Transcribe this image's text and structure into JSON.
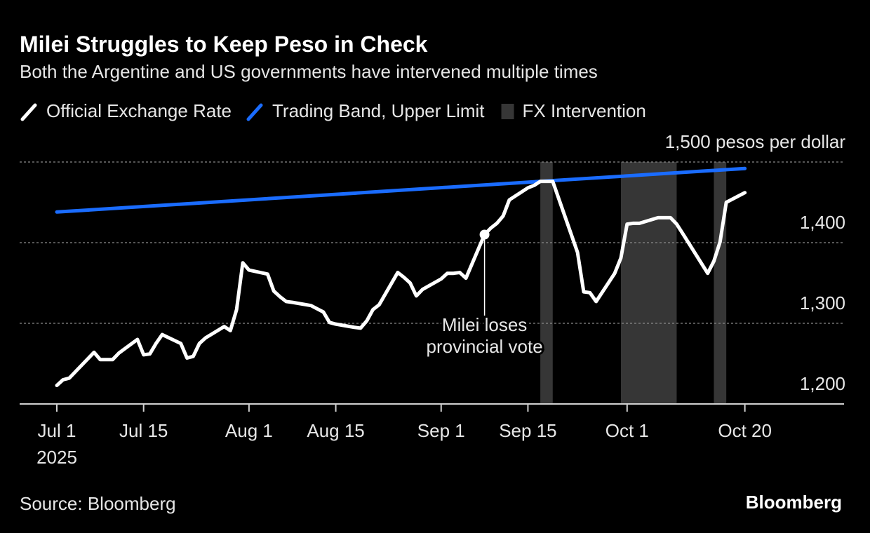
{
  "chart_data": {
    "type": "line",
    "title": "Milei Struggles to Keep Peso in Check",
    "subtitle": "Both the Argentine and US governments have intervened multiple times",
    "source": "Source: Bloomberg",
    "logo": "Bloomberg",
    "x": [
      "2025-07-01",
      "2025-07-02",
      "2025-07-03",
      "2025-07-07",
      "2025-07-08",
      "2025-07-09",
      "2025-07-10",
      "2025-07-11",
      "2025-07-14",
      "2025-07-15",
      "2025-07-16",
      "2025-07-17",
      "2025-07-18",
      "2025-07-21",
      "2025-07-22",
      "2025-07-23",
      "2025-07-24",
      "2025-07-25",
      "2025-07-28",
      "2025-07-29",
      "2025-07-30",
      "2025-07-31",
      "2025-08-01",
      "2025-08-04",
      "2025-08-05",
      "2025-08-06",
      "2025-08-07",
      "2025-08-08",
      "2025-08-11",
      "2025-08-12",
      "2025-08-13",
      "2025-08-14",
      "2025-08-15",
      "2025-08-18",
      "2025-08-19",
      "2025-08-20",
      "2025-08-21",
      "2025-08-22",
      "2025-08-25",
      "2025-08-26",
      "2025-08-27",
      "2025-08-28",
      "2025-08-29",
      "2025-09-01",
      "2025-09-02",
      "2025-09-03",
      "2025-09-04",
      "2025-09-05",
      "2025-09-08",
      "2025-09-09",
      "2025-09-10",
      "2025-09-11",
      "2025-09-12",
      "2025-09-15",
      "2025-09-16",
      "2025-09-17",
      "2025-09-18",
      "2025-09-19",
      "2025-09-22",
      "2025-09-23",
      "2025-09-24",
      "2025-09-25",
      "2025-09-26",
      "2025-09-29",
      "2025-09-30",
      "2025-10-01",
      "2025-10-02",
      "2025-10-03",
      "2025-10-06",
      "2025-10-07",
      "2025-10-08",
      "2025-10-09",
      "2025-10-10",
      "2025-10-14",
      "2025-10-15",
      "2025-10-16",
      "2025-10-17",
      "2025-10-20"
    ],
    "series": [
      {
        "name": "Official Exchange Rate",
        "color": "#ffffff",
        "values": [
          1223,
          1230,
          1232,
          1264,
          1255,
          1255,
          1255,
          1263,
          1280,
          1261,
          1262,
          1275,
          1286,
          1275,
          1257,
          1259,
          1275,
          1282,
          1296,
          1291,
          1317,
          1375,
          1366,
          1361,
          1340,
          1333,
          1327,
          1326,
          1322,
          1318,
          1314,
          1301,
          1299,
          1295,
          1294,
          1303,
          1317,
          1323,
          1363,
          1357,
          1350,
          1334,
          1342,
          1355,
          1362,
          1362,
          1363,
          1356,
          1410,
          1418,
          1424,
          1433,
          1453,
          1468,
          1471,
          1476,
          1476,
          1476,
          1410,
          1388,
          1339,
          1338,
          1327,
          1362,
          1381,
          1423,
          1424,
          1424,
          1431,
          1431,
          1431,
          1423,
          1411,
          1362,
          1377,
          1401,
          1450,
          1462
        ]
      },
      {
        "name": "Trading Band, Upper Limit",
        "color": "#1a6cff",
        "x": [
          "2025-07-01",
          "2025-10-20"
        ],
        "values": [
          1438,
          1492
        ]
      }
    ],
    "shaded": {
      "name": "FX Intervention",
      "color": "#363636",
      "ranges": [
        [
          "2025-09-17",
          "2025-09-19"
        ],
        [
          "2025-09-30",
          "2025-10-09"
        ],
        [
          "2025-10-15",
          "2025-10-17"
        ]
      ]
    },
    "annotation": {
      "lines": [
        "Milei loses",
        "provincial vote"
      ],
      "point": 48
    },
    "xlim": [
      "2025-06-25",
      "2025-11-05"
    ],
    "xticks": [
      {
        "value": "2025-07-01",
        "label": "Jul 1"
      },
      {
        "value": "2025-07-15",
        "label": "Jul 15"
      },
      {
        "value": "2025-08-01",
        "label": "Aug 1"
      },
      {
        "value": "2025-08-15",
        "label": "Aug 15"
      },
      {
        "value": "2025-09-01",
        "label": "Sep 1"
      },
      {
        "value": "2025-09-15",
        "label": "Sep 15"
      },
      {
        "value": "2025-10-01",
        "label": "Oct 1"
      },
      {
        "value": "2025-10-20",
        "label": "Oct 20"
      }
    ],
    "x_year_label": "2025",
    "ylim": [
      1200,
      1500
    ],
    "yticks": [
      {
        "value": 1200,
        "label": "1,200"
      },
      {
        "value": 1300,
        "label": "1,300"
      },
      {
        "value": 1400,
        "label": "1,400"
      },
      {
        "value": 1500,
        "label": "1,500 pesos per dollar"
      }
    ],
    "grid": true
  }
}
